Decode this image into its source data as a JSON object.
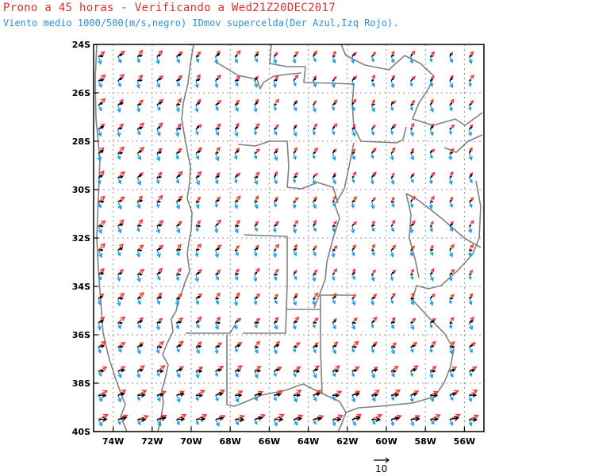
{
  "header": {
    "title": "Prono a 45 horas - Verificando a Wed21Z20DEC2017",
    "subtitle": "Viento medio 1000/500(m/s,negro) IDmov supercelda(Der Azul,Izq Rojo)."
  },
  "map": {
    "lat_range": [
      -40,
      -24
    ],
    "lon_range": [
      -75,
      -55
    ],
    "lat_ticks": [
      {
        "value": -24,
        "label": "24S"
      },
      {
        "value": -26,
        "label": "26S"
      },
      {
        "value": -28,
        "label": "28S"
      },
      {
        "value": -30,
        "label": "30S"
      },
      {
        "value": -32,
        "label": "32S"
      },
      {
        "value": -34,
        "label": "34S"
      },
      {
        "value": -36,
        "label": "36S"
      },
      {
        "value": -38,
        "label": "38S"
      },
      {
        "value": -40,
        "label": "40S"
      }
    ],
    "lon_ticks": [
      {
        "value": -74,
        "label": "74W"
      },
      {
        "value": -72,
        "label": "72W"
      },
      {
        "value": -70,
        "label": "70W"
      },
      {
        "value": -68,
        "label": "68W"
      },
      {
        "value": -66,
        "label": "66W"
      },
      {
        "value": -64,
        "label": "64W"
      },
      {
        "value": -62,
        "label": "62W"
      },
      {
        "value": -60,
        "label": "60W"
      },
      {
        "value": -58,
        "label": "58W"
      },
      {
        "value": -56,
        "label": "56W"
      }
    ],
    "gridlines": "dotted every 2 degrees",
    "colors": {
      "mean_wind": "#000000",
      "right_mover": "#1a9be8",
      "left_mover": "#f03a3a",
      "borders": "#808080",
      "grid": "#9090a0",
      "title": "#d63030",
      "subtitle": "#2f8fd8"
    },
    "scale_vector": {
      "value": 10,
      "label": "10"
    }
  }
}
